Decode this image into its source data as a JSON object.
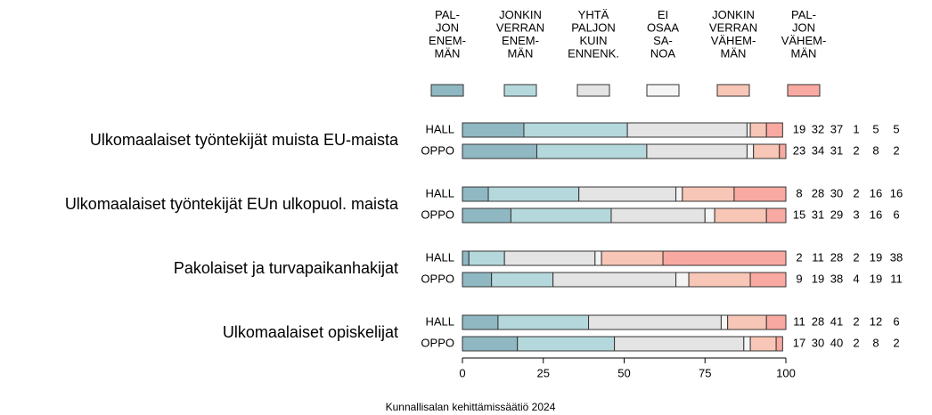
{
  "chart_data": {
    "type": "stacked-bar",
    "groups": [
      "Ulkomaalaiset työntekijät muista EU-maista",
      "Ulkomaalaiset työntekijät EUn ulkopuol. maista",
      "Pakolaiset ja turvapaikanhakijat",
      "Ulkomaalaiset opiskelijat"
    ],
    "categories": [
      "HALL",
      "OPPO",
      "HALL",
      "OPPO",
      "HALL",
      "OPPO",
      "HALL",
      "OPPO"
    ],
    "series": [
      {
        "name": "PAL-\nJON\nENEM-\nMÄN",
        "color": "#8fb8c2",
        "values": [
          19,
          23,
          8,
          15,
          2,
          9,
          11,
          17
        ]
      },
      {
        "name": "JONKIN\nVERRAN\nENEM-\nMÄN",
        "color": "#b5d8dc",
        "values": [
          32,
          34,
          28,
          31,
          11,
          19,
          28,
          30
        ]
      },
      {
        "name": "YHTÄ\nPALJON\nKUIN\nENNENK.",
        "color": "#e4e4e4",
        "values": [
          37,
          31,
          30,
          29,
          28,
          38,
          41,
          40
        ]
      },
      {
        "name": "EI\nOSAA\nSA-\nNOA",
        "color": "#f5f5f5",
        "values": [
          1,
          2,
          2,
          3,
          2,
          4,
          2,
          2
        ]
      },
      {
        "name": "JONKIN\nVERRAN\nVÄHEM-\nMÄN",
        "color": "#f8c6b6",
        "values": [
          5,
          8,
          16,
          16,
          19,
          19,
          12,
          8
        ]
      },
      {
        "name": "PAL-\nJON\nVÄHEM-\nMÄN",
        "color": "#f8a9a1",
        "values": [
          5,
          2,
          16,
          6,
          38,
          11,
          6,
          2
        ]
      }
    ],
    "xlim": [
      0,
      100
    ],
    "xticks": [
      0,
      25,
      50,
      75,
      100
    ],
    "source": "Kunnallisalan kehittämissäätiö 2024"
  }
}
